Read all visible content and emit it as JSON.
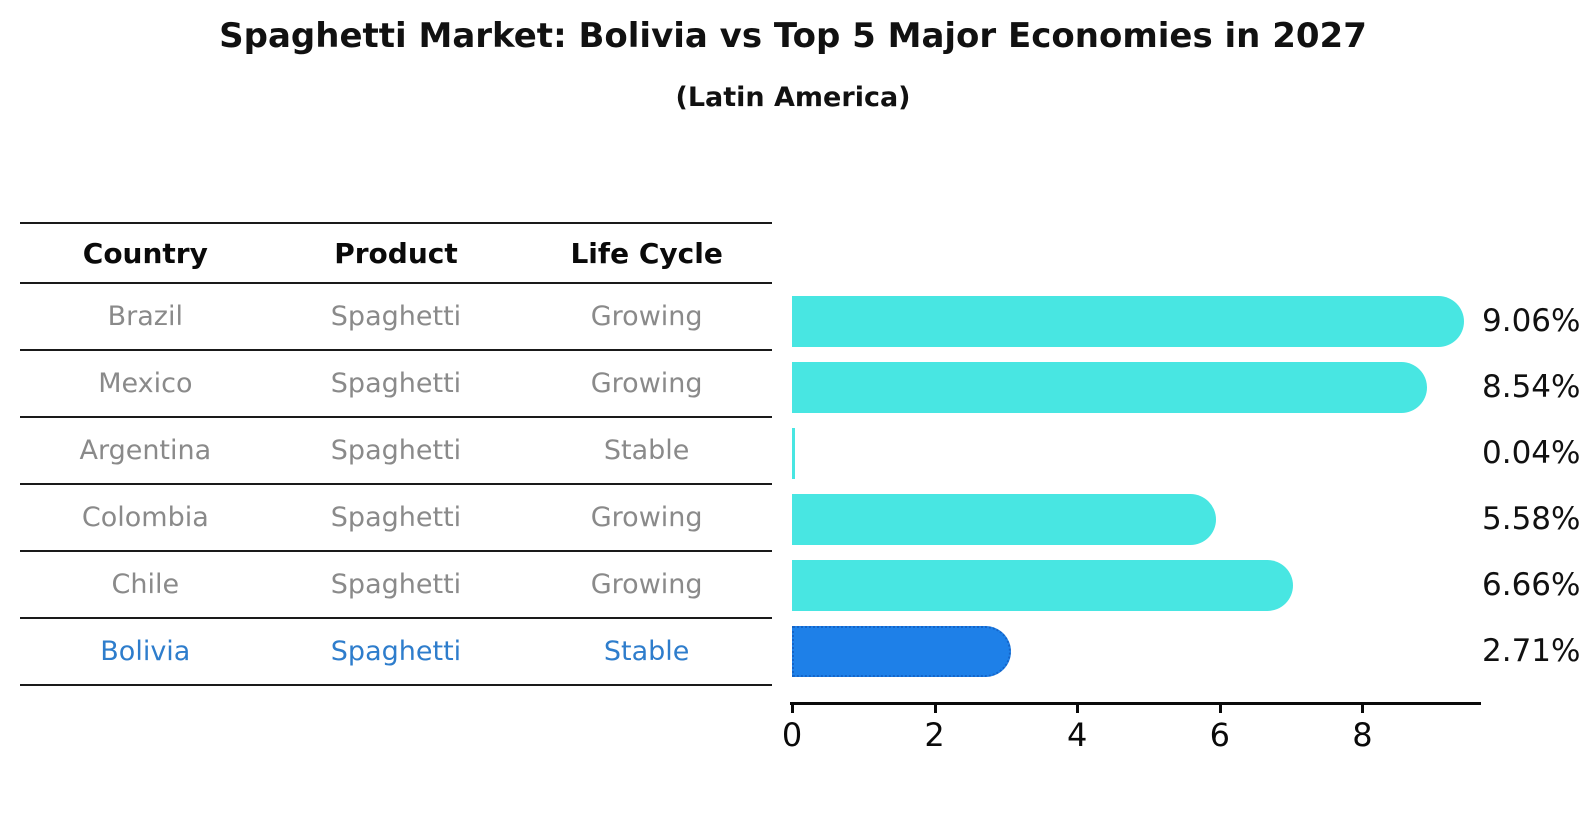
{
  "title": "Spaghetti Market: Bolivia vs Top 5 Major Economies in 2027",
  "subtitle": "(Latin America)",
  "table": {
    "headers": [
      "Country",
      "Product",
      "Life Cycle"
    ],
    "rows": [
      {
        "country": "Brazil",
        "product": "Spaghetti",
        "life_cycle": "Growing",
        "highlight": false
      },
      {
        "country": "Mexico",
        "product": "Spaghetti",
        "life_cycle": "Growing",
        "highlight": false
      },
      {
        "country": "Argentina",
        "product": "Spaghetti",
        "life_cycle": "Stable",
        "highlight": false
      },
      {
        "country": "Colombia",
        "product": "Spaghetti",
        "life_cycle": "Growing",
        "highlight": false
      },
      {
        "country": "Chile",
        "product": "Spaghetti",
        "life_cycle": "Growing",
        "highlight": false
      },
      {
        "country": "Bolivia",
        "product": "Spaghetti",
        "life_cycle": "Stable",
        "highlight": true
      }
    ]
  },
  "chart_data": {
    "type": "bar",
    "orientation": "horizontal",
    "title": "Spaghetti Market: Bolivia vs Top 5 Major Economies in 2027",
    "subtitle": "(Latin America)",
    "categories": [
      "Brazil",
      "Mexico",
      "Argentina",
      "Colombia",
      "Chile",
      "Bolivia"
    ],
    "values": [
      9.06,
      8.54,
      0.04,
      5.58,
      6.66,
      2.71
    ],
    "value_labels": [
      "9.06%",
      "8.54%",
      "0.04%",
      "5.58%",
      "6.66%",
      "2.71%"
    ],
    "x_ticks": [
      0,
      2,
      4,
      6,
      8
    ],
    "xlim": [
      0,
      9.66
    ],
    "grid": false,
    "legend": false,
    "bar_color": "#48e6e2",
    "highlight_bar_color": "#1e80e8",
    "highlight_border_color": "#1464c8",
    "highlight_index": 5,
    "highlight_text_color": "#2e7dcc",
    "table_text_color": "#8a8a8a"
  }
}
